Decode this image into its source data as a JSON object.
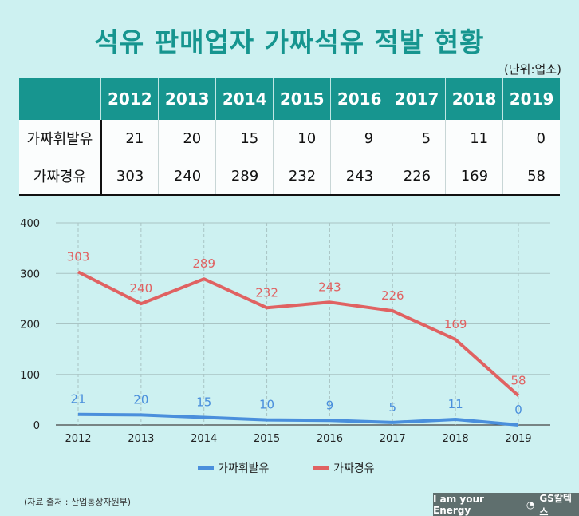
{
  "title": "석유 판매업자 가짜석유 적발 현황",
  "unit": "(단위:업소)",
  "table": {
    "years": [
      "2012",
      "2013",
      "2014",
      "2015",
      "2016",
      "2017",
      "2018",
      "2019"
    ],
    "rows": [
      {
        "label": "가짜휘발유",
        "values": [
          "21",
          "20",
          "15",
          "10",
          "9",
          "5",
          "11",
          "0"
        ]
      },
      {
        "label": "가짜경유",
        "values": [
          "303",
          "240",
          "289",
          "232",
          "243",
          "226",
          "169",
          "58"
        ]
      }
    ]
  },
  "chart_data": {
    "type": "line",
    "x": [
      "2012",
      "2013",
      "2014",
      "2015",
      "2016",
      "2017",
      "2018",
      "2019"
    ],
    "ylim": [
      0,
      400
    ],
    "yticks": [
      0,
      100,
      200,
      300,
      400
    ],
    "grid": true,
    "legend_placement": "bottom",
    "series": [
      {
        "name": "가짜휘발유",
        "color": "#4a8fdc",
        "values": [
          21,
          20,
          15,
          10,
          9,
          5,
          11,
          0
        ]
      },
      {
        "name": "가짜경유",
        "color": "#e06262",
        "values": [
          303,
          240,
          289,
          232,
          243,
          226,
          169,
          58
        ]
      }
    ]
  },
  "source": "(자료 출처 : 산업통상자원부)",
  "brand": {
    "slogan": "I am your Energy",
    "logo": "GS칼텍스"
  }
}
